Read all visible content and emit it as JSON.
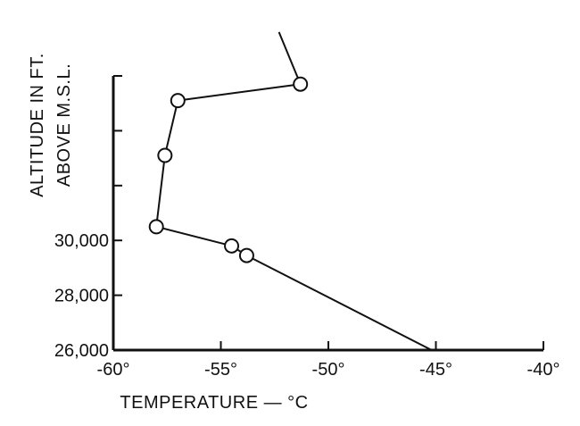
{
  "chart_data": {
    "type": "line",
    "title": "",
    "xlabel": "TEMPERATURE — °C",
    "ylabel": [
      "ALTITUDE IN FT.",
      "ABOVE M.S.L."
    ],
    "xlim": [
      -60,
      -40
    ],
    "ylim": [
      26000,
      36000
    ],
    "x_ticks": [
      -60,
      -55,
      -50,
      -45,
      -40
    ],
    "x_tick_labels": [
      "-60°",
      "-55°",
      "-50°",
      "-45°",
      "-40°"
    ],
    "y_ticks": [
      26000,
      28000,
      30000,
      32000,
      34000,
      36000
    ],
    "y_tick_labels": [
      "26,000",
      "28,000",
      "30,000",
      "",
      "",
      ""
    ],
    "grid": false,
    "series": [
      {
        "points": [
          {
            "x": -45.2,
            "y": 26000
          },
          {
            "x": -53.8,
            "y": 29450
          },
          {
            "x": -54.5,
            "y": 29800
          },
          {
            "x": -58.0,
            "y": 30500
          },
          {
            "x": -57.6,
            "y": 33100
          },
          {
            "x": -57.0,
            "y": 35100
          },
          {
            "x": -51.3,
            "y": 35700
          },
          {
            "x": -52.3,
            "y": 37600
          }
        ],
        "marked_points": [
          {
            "x": -53.8,
            "y": 29450
          },
          {
            "x": -54.5,
            "y": 29800
          },
          {
            "x": -58.0,
            "y": 30500
          },
          {
            "x": -57.6,
            "y": 33100
          },
          {
            "x": -57.0,
            "y": 35100
          },
          {
            "x": -51.3,
            "y": 35700
          }
        ]
      }
    ]
  }
}
